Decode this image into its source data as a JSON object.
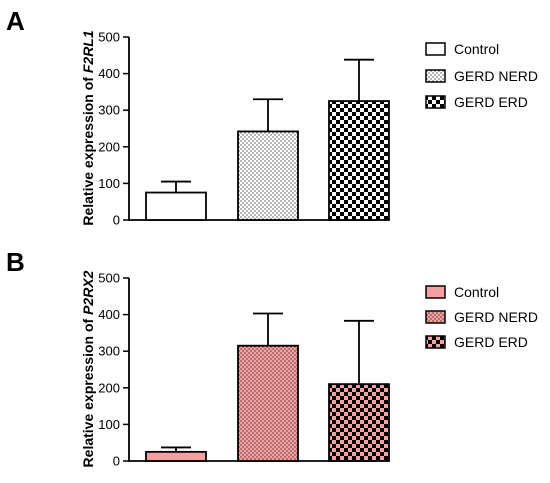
{
  "panels": [
    {
      "letter": "A",
      "ylabel_prefix": "Relative expression of ",
      "ylabel_gene": "F2RL1",
      "fill_color": "#ffffff",
      "legend": [
        "Control",
        "GERD NERD",
        "GERD ERD"
      ]
    },
    {
      "letter": "B",
      "ylabel_prefix": "Relative expression of ",
      "ylabel_gene": "P2RX2",
      "fill_color": "#f4a0a0",
      "legend": [
        "Control",
        "GERD NERD",
        "GERD ERD"
      ]
    }
  ],
  "chart_data": [
    {
      "type": "bar",
      "panel": "A",
      "categories": [
        "Control",
        "GERD NERD",
        "GERD ERD"
      ],
      "patterns": [
        "solid",
        "dots",
        "checker"
      ],
      "values": [
        75,
        242,
        325
      ],
      "error_upper": [
        105,
        330,
        438
      ],
      "ylabel": "Relative expression of F2RL1",
      "ylim": [
        0,
        500
      ],
      "yticks": [
        0,
        100,
        200,
        300,
        400,
        500
      ],
      "legend_position": "right"
    },
    {
      "type": "bar",
      "panel": "B",
      "categories": [
        "Control",
        "GERD NERD",
        "GERD ERD"
      ],
      "patterns": [
        "solid",
        "dots",
        "checker"
      ],
      "values": [
        25,
        315,
        210
      ],
      "error_upper": [
        37,
        403,
        383
      ],
      "ylabel": "Relative expression of P2RX2",
      "ylim": [
        0,
        500
      ],
      "yticks": [
        0,
        100,
        200,
        300,
        400,
        500
      ],
      "legend_position": "right"
    }
  ]
}
